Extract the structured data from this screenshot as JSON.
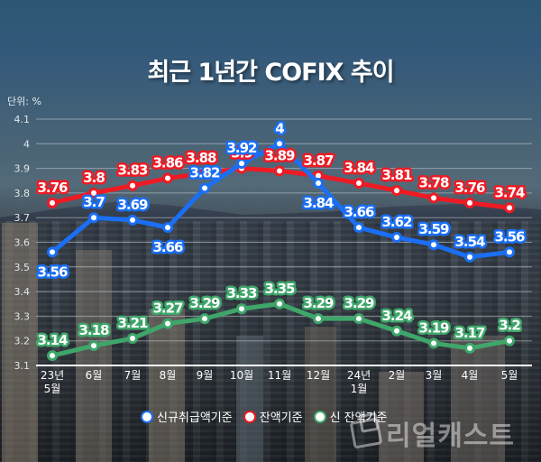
{
  "header": {
    "title": "최근 1년간 COFIX 추이",
    "unit_label": "단위: %"
  },
  "legend": {
    "items": [
      {
        "label": "신규취급액기준",
        "color": "#1a6ff5"
      },
      {
        "label": "잔액기준",
        "color": "#ee1b24"
      },
      {
        "label": "신 잔액기준",
        "color": "#3fa66a"
      }
    ]
  },
  "watermark": {
    "text": "리얼캐스트"
  },
  "colors": {
    "new_loan": "#1a6ff5",
    "balance": "#ee1b24",
    "new_balance": "#3fa66a",
    "grid": "#c9d0d6",
    "axis": "#ffffff"
  },
  "chart_data": {
    "type": "line",
    "title": "최근 1년간 COFIX 추이",
    "xlabel": "",
    "ylabel": "단위: %",
    "ylim": [
      3.1,
      4.1
    ],
    "yticks": [
      3.1,
      3.2,
      3.3,
      3.4,
      3.5,
      3.6,
      3.7,
      3.8,
      3.9,
      4,
      4.1
    ],
    "grid": true,
    "legend_position": "bottom",
    "categories": [
      "23년 5월",
      "6월",
      "7월",
      "8월",
      "9월",
      "10월",
      "11월",
      "12월",
      "24년 1월",
      "2월",
      "3월",
      "4월",
      "5월"
    ],
    "category_lines": [
      [
        "23년",
        "5월"
      ],
      [
        "6월"
      ],
      [
        "7월"
      ],
      [
        "8월"
      ],
      [
        "9월"
      ],
      [
        "10월"
      ],
      [
        "11월"
      ],
      [
        "12월"
      ],
      [
        "24년",
        "1월"
      ],
      [
        "2월"
      ],
      [
        "3월"
      ],
      [
        "4월"
      ],
      [
        "5월"
      ]
    ],
    "series": [
      {
        "name": "신규취급액기준",
        "color": "#1a6ff5",
        "values": [
          3.56,
          3.7,
          3.69,
          3.66,
          3.82,
          3.92,
          4,
          3.84,
          3.66,
          3.62,
          3.59,
          3.54,
          3.56
        ]
      },
      {
        "name": "잔액기준",
        "color": "#ee1b24",
        "values": [
          3.76,
          3.8,
          3.83,
          3.86,
          3.88,
          3.9,
          3.89,
          3.87,
          3.84,
          3.81,
          3.78,
          3.76,
          3.74
        ]
      },
      {
        "name": "신 잔액기준",
        "color": "#3fa66a",
        "values": [
          3.14,
          3.18,
          3.21,
          3.27,
          3.29,
          3.33,
          3.35,
          3.29,
          3.29,
          3.24,
          3.19,
          3.17,
          3.2
        ]
      }
    ],
    "label_positions": {
      "신규취급액기준": [
        "below",
        "above",
        "above",
        "below",
        "above",
        "above",
        "above",
        "below",
        "above",
        "above",
        "above",
        "above",
        "above"
      ],
      "잔액기준": [
        "above",
        "above",
        "above",
        "above",
        "above-left",
        "above",
        "above",
        "above",
        "above",
        "above",
        "above",
        "above",
        "above"
      ],
      "신 잔액기준": [
        "above",
        "above",
        "above",
        "above",
        "above",
        "above",
        "above",
        "above",
        "above",
        "above",
        "above",
        "above",
        "above"
      ]
    }
  }
}
